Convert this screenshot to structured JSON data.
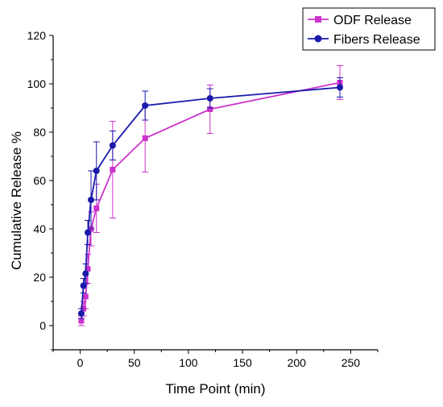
{
  "chart_data": {
    "type": "line",
    "title": "",
    "xlabel": "Time Point (min)",
    "ylabel": "Cumulative Release %",
    "xlim": [
      -25,
      275
    ],
    "ylim": [
      -10,
      120
    ],
    "xticks": [
      0,
      50,
      100,
      150,
      200,
      250
    ],
    "yticks": [
      0,
      20,
      40,
      60,
      80,
      100,
      120
    ],
    "grid": false,
    "legend_position": "top-right",
    "series": [
      {
        "name": "ODF Release",
        "color": "#cc33cc",
        "marker": "square",
        "x": [
          1,
          3,
          5,
          7,
          10,
          15,
          30,
          60,
          120,
          240
        ],
        "y": [
          2,
          7,
          12,
          23.5,
          40,
          48.5,
          64.5,
          77.5,
          89.5,
          100.5
        ],
        "error": [
          2,
          3,
          5,
          6,
          7,
          10,
          20,
          14,
          10,
          7
        ]
      },
      {
        "name": "Fibers Release",
        "color": "#1a1aaa",
        "marker": "circle",
        "x": [
          1,
          3,
          5,
          7,
          10,
          15,
          30,
          60,
          120,
          240
        ],
        "y": [
          5,
          16.5,
          21.5,
          38.5,
          52,
          64,
          74.5,
          91,
          94,
          98.5
        ],
        "error": [
          2,
          3,
          4,
          5,
          12,
          12,
          6,
          6,
          4,
          4
        ]
      }
    ]
  }
}
